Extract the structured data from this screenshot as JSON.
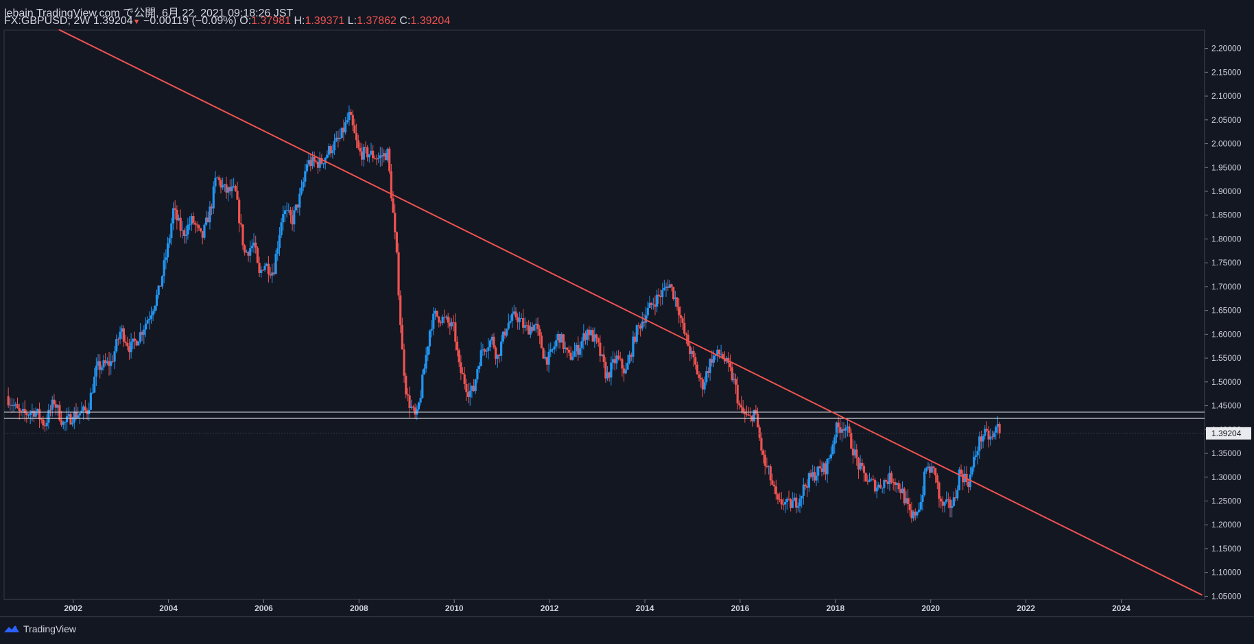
{
  "header": {
    "line1": "lebain TradingView.com で公開, 6月 22, 2021 09:18:26 JST",
    "symbol": "FX:GBPUSD, 2W",
    "last": "1.39204",
    "change": "−0.00119 (−0.09%)",
    "o_label": "O:",
    "o_value": "1.37981",
    "h_label": "H:",
    "h_value": "1.39371",
    "l_label": "L:",
    "l_value": "1.37862",
    "c_label": "C:",
    "c_value": "1.39204"
  },
  "colors": {
    "background": "#131722",
    "up": "#2196f3",
    "down": "#ef5350",
    "trendline": "#ef5350",
    "level_lines": "#d1d4dc",
    "text": "#d1d4dc"
  },
  "footer": {
    "brand": "TradingView",
    "logo_icon": "tradingview-logo-icon"
  },
  "chart_data": {
    "type": "candlestick",
    "symbol": "FX:GBPUSD",
    "interval": "2W",
    "xlim": [
      2000.55,
      2025.75
    ],
    "ylim": [
      1.0434,
      2.2383
    ],
    "x_ticks": [
      "2002",
      "2004",
      "2006",
      "2008",
      "2010",
      "2012",
      "2014",
      "2016",
      "2018",
      "2020",
      "2022",
      "2024"
    ],
    "y_ticks": [
      "2.20000",
      "2.15000",
      "2.10000",
      "2.05000",
      "2.00000",
      "1.95000",
      "1.90000",
      "1.85000",
      "1.80000",
      "1.75000",
      "1.70000",
      "1.65000",
      "1.60000",
      "1.55000",
      "1.50000",
      "1.45000",
      "1.40000",
      "1.35000",
      "1.30000",
      "1.25000",
      "1.20000",
      "1.15000",
      "1.10000",
      "1.05000"
    ],
    "last_price_label": "1.39204",
    "last_price": 1.39204,
    "trendline": {
      "x": [
        2001.7,
        2025.7
      ],
      "y": [
        2.2395,
        1.0525
      ]
    },
    "horizontal_levels": [
      1.4365,
      1.4235
    ],
    "price_path": [
      [
        2000.6,
        1.47
      ],
      [
        2000.9,
        1.43
      ],
      [
        2001.2,
        1.44
      ],
      [
        2001.4,
        1.41
      ],
      [
        2001.6,
        1.46
      ],
      [
        2001.8,
        1.41
      ],
      [
        2002.0,
        1.43
      ],
      [
        2002.3,
        1.44
      ],
      [
        2002.5,
        1.53
      ],
      [
        2002.8,
        1.54
      ],
      [
        2003.0,
        1.61
      ],
      [
        2003.2,
        1.57
      ],
      [
        2003.4,
        1.6
      ],
      [
        2003.6,
        1.64
      ],
      [
        2003.8,
        1.69
      ],
      [
        2004.0,
        1.79
      ],
      [
        2004.1,
        1.86
      ],
      [
        2004.3,
        1.81
      ],
      [
        2004.5,
        1.84
      ],
      [
        2004.7,
        1.8
      ],
      [
        2004.9,
        1.87
      ],
      [
        2005.0,
        1.93
      ],
      [
        2005.2,
        1.9
      ],
      [
        2005.4,
        1.9
      ],
      [
        2005.6,
        1.77
      ],
      [
        2005.8,
        1.79
      ],
      [
        2005.9,
        1.72
      ],
      [
        2006.0,
        1.75
      ],
      [
        2006.2,
        1.73
      ],
      [
        2006.4,
        1.86
      ],
      [
        2006.6,
        1.84
      ],
      [
        2006.8,
        1.9
      ],
      [
        2006.9,
        1.96
      ],
      [
        2007.0,
        1.96
      ],
      [
        2007.2,
        1.96
      ],
      [
        2007.4,
        1.99
      ],
      [
        2007.6,
        2.01
      ],
      [
        2007.8,
        2.06
      ],
      [
        2007.9,
        2.02
      ],
      [
        2008.0,
        1.98
      ],
      [
        2008.2,
        1.98
      ],
      [
        2008.4,
        1.97
      ],
      [
        2008.6,
        1.98
      ],
      [
        2008.7,
        1.87
      ],
      [
        2008.8,
        1.75
      ],
      [
        2008.9,
        1.57
      ],
      [
        2009.0,
        1.47
      ],
      [
        2009.2,
        1.42
      ],
      [
        2009.3,
        1.48
      ],
      [
        2009.5,
        1.62
      ],
      [
        2009.6,
        1.64
      ],
      [
        2009.8,
        1.63
      ],
      [
        2010.0,
        1.61
      ],
      [
        2010.1,
        1.53
      ],
      [
        2010.3,
        1.48
      ],
      [
        2010.4,
        1.48
      ],
      [
        2010.5,
        1.54
      ],
      [
        2010.6,
        1.57
      ],
      [
        2010.8,
        1.59
      ],
      [
        2010.9,
        1.55
      ],
      [
        2011.1,
        1.62
      ],
      [
        2011.3,
        1.64
      ],
      [
        2011.5,
        1.61
      ],
      [
        2011.7,
        1.62
      ],
      [
        2011.9,
        1.55
      ],
      [
        2012.0,
        1.55
      ],
      [
        2012.2,
        1.6
      ],
      [
        2012.4,
        1.55
      ],
      [
        2012.6,
        1.57
      ],
      [
        2012.8,
        1.61
      ],
      [
        2013.0,
        1.58
      ],
      [
        2013.2,
        1.51
      ],
      [
        2013.4,
        1.55
      ],
      [
        2013.6,
        1.52
      ],
      [
        2013.8,
        1.6
      ],
      [
        2014.0,
        1.64
      ],
      [
        2014.2,
        1.67
      ],
      [
        2014.4,
        1.69
      ],
      [
        2014.5,
        1.71
      ],
      [
        2014.7,
        1.66
      ],
      [
        2014.8,
        1.61
      ],
      [
        2015.0,
        1.55
      ],
      [
        2015.2,
        1.49
      ],
      [
        2015.4,
        1.55
      ],
      [
        2015.6,
        1.56
      ],
      [
        2015.8,
        1.52
      ],
      [
        2015.9,
        1.49
      ],
      [
        2016.0,
        1.44
      ],
      [
        2016.2,
        1.42
      ],
      [
        2016.3,
        1.44
      ],
      [
        2016.5,
        1.33
      ],
      [
        2016.6,
        1.31
      ],
      [
        2016.8,
        1.24
      ],
      [
        2016.9,
        1.25
      ],
      [
        2017.0,
        1.24
      ],
      [
        2017.2,
        1.25
      ],
      [
        2017.4,
        1.29
      ],
      [
        2017.6,
        1.31
      ],
      [
        2017.8,
        1.32
      ],
      [
        2017.9,
        1.35
      ],
      [
        2018.0,
        1.4
      ],
      [
        2018.2,
        1.41
      ],
      [
        2018.3,
        1.38
      ],
      [
        2018.5,
        1.32
      ],
      [
        2018.7,
        1.29
      ],
      [
        2018.9,
        1.28
      ],
      [
        2019.0,
        1.29
      ],
      [
        2019.2,
        1.3
      ],
      [
        2019.4,
        1.27
      ],
      [
        2019.6,
        1.21
      ],
      [
        2019.8,
        1.25
      ],
      [
        2019.9,
        1.32
      ],
      [
        2020.1,
        1.31
      ],
      [
        2020.2,
        1.24
      ],
      [
        2020.4,
        1.24
      ],
      [
        2020.5,
        1.25
      ],
      [
        2020.6,
        1.31
      ],
      [
        2020.8,
        1.29
      ],
      [
        2020.9,
        1.33
      ],
      [
        2021.0,
        1.37
      ],
      [
        2021.1,
        1.39
      ],
      [
        2021.3,
        1.38
      ],
      [
        2021.4,
        1.41
      ],
      [
        2021.47,
        1.392
      ]
    ]
  }
}
